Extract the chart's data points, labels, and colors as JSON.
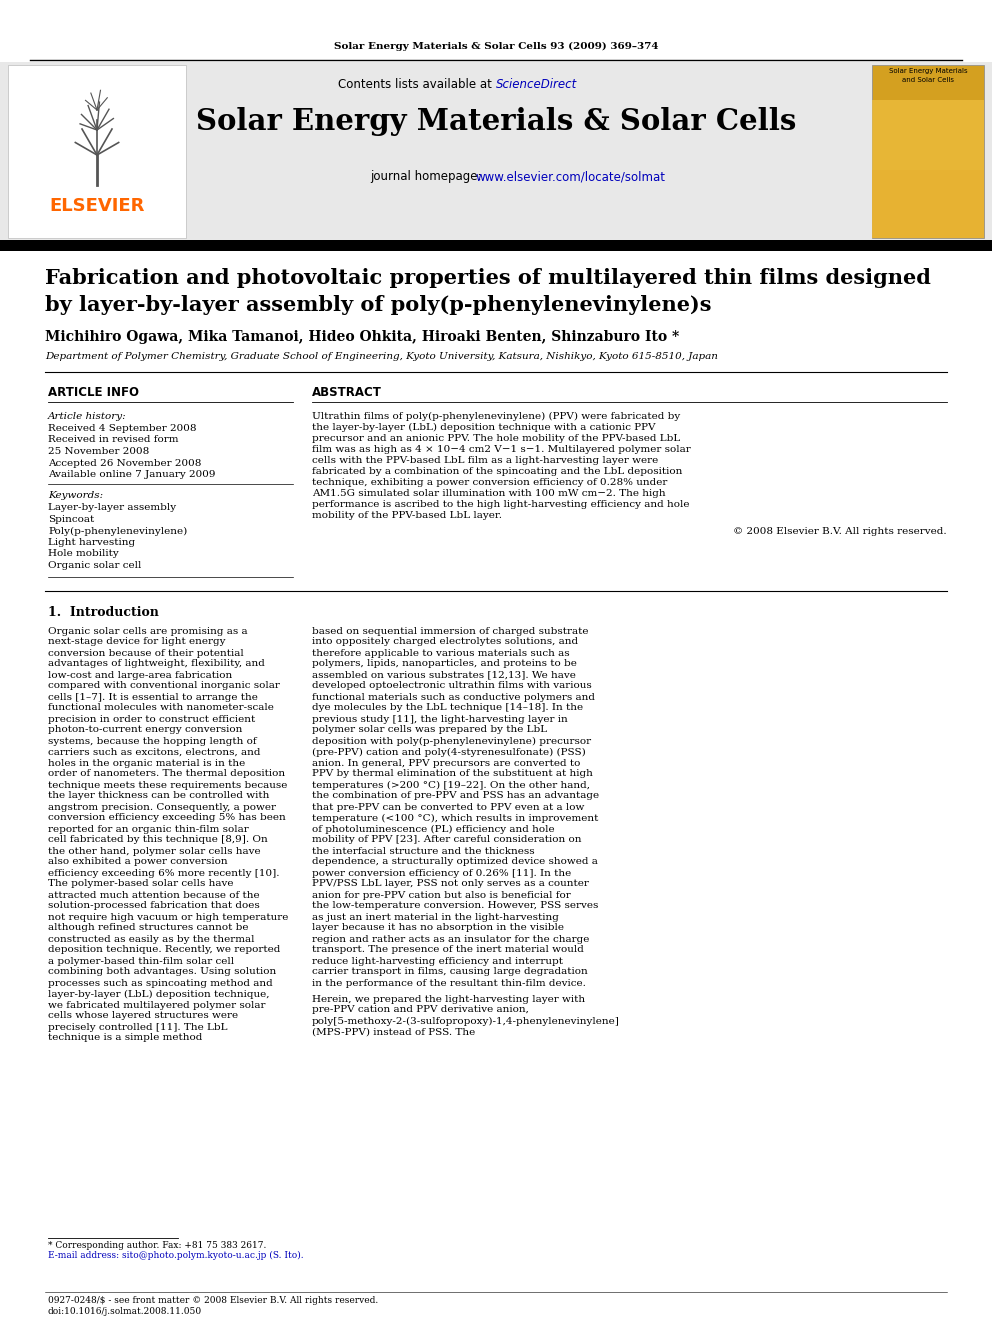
{
  "journal_line": "Solar Energy Materials & Solar Cells 93 (2009) 369–374",
  "contents_text": "Contents lists available at ",
  "sciencedirect_text": "ScienceDirect",
  "journal_title": "Solar Energy Materials & Solar Cells",
  "homepage_label": "journal homepage: ",
  "homepage_url": "www.elsevier.com/locate/solmat",
  "elsevier_text": "ELSEVIER",
  "paper_title_line1": "Fabrication and photovoltaic properties of multilayered thin films designed",
  "paper_title_line2": "by layer-by-layer assembly of poly(p-phenylenevinylene)s",
  "authors": "Michihiro Ogawa, Mika Tamanoi, Hideo Ohkita, Hiroaki Benten, Shinzaburo Ito *",
  "affiliation": "Department of Polymer Chemistry, Graduate School of Engineering, Kyoto University, Katsura, Nishikyo, Kyoto 615-8510, Japan",
  "article_info_title": "ARTICLE INFO",
  "abstract_title": "ABSTRACT",
  "article_history_label": "Article history:",
  "history_lines": [
    "Received 4 September 2008",
    "Received in revised form",
    "25 November 2008",
    "Accepted 26 November 2008",
    "Available online 7 January 2009"
  ],
  "keywords_label": "Keywords:",
  "keywords": [
    "Layer-by-layer assembly",
    "Spincoat",
    "Poly(p-phenylenevinylene)",
    "Light harvesting",
    "Hole mobility",
    "Organic solar cell"
  ],
  "abstract_text": "Ultrathin films of poly(p-phenylenevinylene) (PPV) were fabricated by the layer-by-layer (LbL) deposition technique with a cationic PPV precursor and an anionic PPV. The hole mobility of the PPV-based LbL film was as high as 4 × 10−4 cm2 V−1 s−1. Multilayered polymer solar cells with the PPV-based LbL film as a light-harvesting layer were fabricated by a combination of the spincoating and the LbL deposition technique, exhibiting a power conversion efficiency of 0.28% under AM1.5G simulated solar illumination with 100 mW cm−2. The high performance is ascribed to the high light-harvesting efficiency and hole mobility of the PPV-based LbL layer.",
  "copyright": "© 2008 Elsevier B.V. All rights reserved.",
  "section1_title": "1.  Introduction",
  "intro_left": "    Organic solar cells are promising as a next-stage device for light energy conversion because of their potential advantages of lightweight, flexibility, and low-cost and large-area fabrication compared with conventional inorganic solar cells [1–7]. It is essential to arrange the functional molecules with nanometer-scale precision in order to construct efficient photon-to-current energy conversion systems, because the hopping length of carriers such as excitons, electrons, and holes in the organic material is in the order of nanometers. The thermal deposition technique meets these requirements because the layer thickness can be controlled with angstrom precision. Consequently, a power conversion efficiency exceeding 5% has been reported for an organic thin-film solar cell fabricated by this technique [8,9]. On the other hand, polymer solar cells have also exhibited a power conversion efficiency exceeding 6% more recently [10]. The polymer-based solar cells have attracted much attention because of the solution-processed fabrication that does not require high vacuum or high temperature although refined structures cannot be constructed as easily as by the thermal deposition technique. Recently, we reported a polymer-based thin-film solar cell combining both advantages. Using solution processes such as spincoating method and layer-by-layer (LbL) deposition technique, we fabricated multilayered polymer solar cells whose layered structures were precisely controlled [11]. The LbL technique is a simple method",
  "intro_right": "based on sequential immersion of charged substrate into oppositely charged electrolytes solutions, and therefore applicable to various materials such as polymers, lipids, nanoparticles, and proteins to be assembled on various substrates [12,13]. We have developed optoelectronic ultrathin films with various functional materials such as conductive polymers and dye molecules by the LbL technique [14–18]. In the previous study [11], the light-harvesting layer in polymer solar cells was prepared by the LbL deposition with poly(p-phenylenevinylene) precursor (pre-PPV) cation and poly(4-styrenesulfonate) (PSS) anion. In general, PPV precursors are converted to PPV by thermal elimination of the substituent at high temperatures (>200 °C) [19–22]. On the other hand, the combination of pre-PPV and PSS has an advantage that pre-PPV can be converted to PPV even at a low temperature (<100 °C), which results in improvement of photoluminescence (PL) efficiency and hole mobility of PPV [23]. After careful consideration on the interfacial structure and the thickness dependence, a structurally optimized device showed a power conversion efficiency of 0.26% [11]. In the PPV/PSS LbL layer, PSS not only serves as a counter anion for pre-PPV cation but also is beneficial for the low-temperature conversion. However, PSS serves as just an inert material in the light-harvesting layer because it has no absorption in the visible region and rather acts as an insulator for the charge transport. The presence of the inert material would reduce light-harvesting efficiency and interrupt carrier transport in films, causing large degradation in the performance of the resultant thin-film device.",
  "intro_right2": "    Herein, we prepared the light-harvesting layer with pre-PPV cation and PPV derivative anion, poly[5-methoxy-2-(3-sulfopropoxy)-1,4-phenylenevinylene] (MPS-PPV) instead of PSS. The",
  "footnote_line1": "* Corresponding author. Fax: +81 75 383 2617.",
  "footnote_line2": "E-mail address: sito@photo.polym.kyoto-u.ac.jp (S. Ito).",
  "footer_line1": "0927-0248/$ - see front matter © 2008 Elsevier B.V. All rights reserved.",
  "footer_line2": "doi:10.1016/j.solmat.2008.11.050",
  "gray_bg": "#e8e8e8",
  "link_color": "#0000bb",
  "elsevier_orange": "#FF6600",
  "black": "#000000",
  "white": "#ffffff"
}
